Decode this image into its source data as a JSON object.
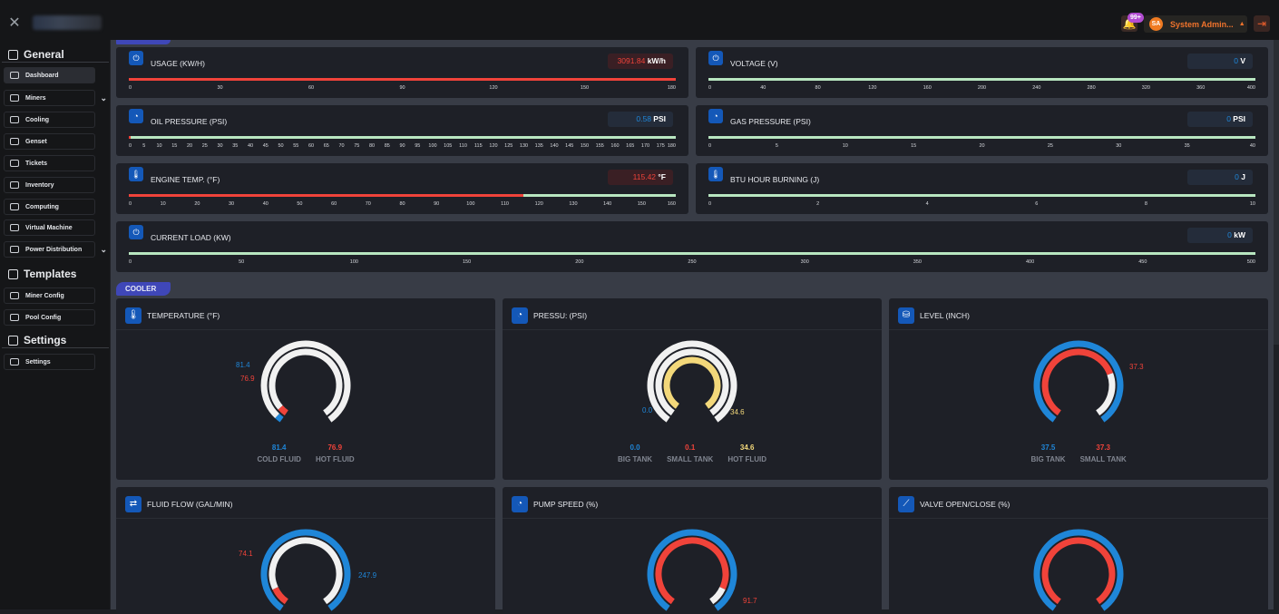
{
  "topbar": {
    "notification_count": "99+",
    "user_initials": "SA",
    "user_name": "System Admin..."
  },
  "sidebar": {
    "sections": [
      {
        "title": "General",
        "items": [
          "Dashboard",
          "Miners",
          "Cooling",
          "Genset",
          "Tickets",
          "Inventory",
          "Computing",
          "Virtual Machine",
          "Power Distribution"
        ]
      },
      {
        "title": "Templates",
        "items": [
          "Miner Config",
          "Pool Config"
        ]
      },
      {
        "title": "Settings",
        "items": [
          "Settings"
        ]
      }
    ]
  },
  "meters": [
    {
      "title": "USAGE (KW/H)",
      "value": "3091.84",
      "unit": "kW/h",
      "status": "red",
      "fill": 1.0,
      "ticks": [
        "0",
        "30",
        "60",
        "90",
        "120",
        "150",
        "180"
      ]
    },
    {
      "title": "VOLTAGE (V)",
      "value": "0",
      "unit": "V",
      "status": "blue",
      "fill": 0,
      "ticks": [
        "0",
        "40",
        "80",
        "120",
        "160",
        "200",
        "240",
        "280",
        "320",
        "360",
        "400"
      ]
    },
    {
      "title": "OIL PRESSURE (PSI)",
      "value": "0.58",
      "unit": "PSI",
      "status": "blue",
      "fill": 0.003,
      "ticks": [
        "0",
        "5",
        "10",
        "15",
        "20",
        "25",
        "30",
        "35",
        "40",
        "45",
        "50",
        "55",
        "60",
        "65",
        "70",
        "75",
        "80",
        "85",
        "90",
        "95",
        "100",
        "105",
        "110",
        "115",
        "120",
        "125",
        "130",
        "135",
        "140",
        "145",
        "150",
        "155",
        "160",
        "165",
        "170",
        "175",
        "180"
      ]
    },
    {
      "title": "GAS PRESSURE (PSI)",
      "value": "0",
      "unit": "PSI",
      "status": "blue",
      "fill": 0,
      "ticks": [
        "0",
        "5",
        "10",
        "15",
        "20",
        "25",
        "30",
        "35",
        "40"
      ]
    },
    {
      "title": "ENGINE TEMP. (°F)",
      "value": "115.42",
      "unit": "°F",
      "status": "red",
      "fill": 0.7214,
      "ticks": [
        "0",
        "10",
        "20",
        "30",
        "40",
        "50",
        "60",
        "70",
        "80",
        "90",
        "100",
        "110",
        "120",
        "130",
        "140",
        "150",
        "160"
      ]
    },
    {
      "title": "BTU HOUR BURNING (J)",
      "value": "0",
      "unit": "J",
      "status": "blue",
      "fill": 0,
      "ticks": [
        "0",
        "2",
        "4",
        "6",
        "8",
        "10"
      ]
    },
    {
      "title": "CURRENT LOAD (KW)",
      "value": "0",
      "unit": "kW",
      "status": "blue",
      "fill": 0,
      "ticks": [
        "0",
        "50",
        "100",
        "150",
        "200",
        "250",
        "300",
        "350",
        "400",
        "450",
        "500"
      ]
    }
  ],
  "cooler_tab": "COOLER",
  "gauges": [
    {
      "title": "TEMPERATURE (°F)",
      "icon": "thermometer-icon",
      "legend": [
        {
          "value": "81.4",
          "label": "COLD FLUID",
          "color": "#1f86d8"
        },
        {
          "value": "76.9",
          "label": "HOT FLUID",
          "color": "#f0433a"
        }
      ],
      "callouts": [
        {
          "text": "81.4",
          "color": "#1f86d8"
        },
        {
          "text": "76.9",
          "color": "#f0433a"
        }
      ]
    },
    {
      "title": "PRESSU: (PSI)",
      "icon": "gauge-icon",
      "legend": [
        {
          "value": "0.0",
          "label": "BIG TANK",
          "color": "#1f86d8"
        },
        {
          "value": "0.1",
          "label": "SMALL TANK",
          "color": "#f0433a"
        },
        {
          "value": "34.6",
          "label": "HOT FLUID",
          "color": "#f3d87a"
        }
      ],
      "callouts": [
        {
          "text": "0.0",
          "color": "#1f86d8"
        },
        {
          "text": "34.6",
          "color": "#f3d87a"
        }
      ]
    },
    {
      "title": "LEVEL (INCH)",
      "icon": "tank-icon",
      "legend": [
        {
          "value": "37.5",
          "label": "BIG TANK",
          "color": "#1f86d8"
        },
        {
          "value": "37.3",
          "label": "SMALL TANK",
          "color": "#f0433a"
        }
      ],
      "callouts": [
        {
          "text": "37.3",
          "color": "#f0433a"
        }
      ]
    },
    {
      "title": "FLUID FLOW (GAL/MIN)",
      "icon": "flow-icon",
      "legend": [],
      "callouts": [
        {
          "text": "74.1",
          "color": "#f0433a"
        },
        {
          "text": "247.9",
          "color": "#1f86d8"
        }
      ]
    },
    {
      "title": "PUMP SPEED (%)",
      "icon": "speedometer-icon",
      "legend": [],
      "callouts": [
        {
          "text": "91.7",
          "color": "#f0433a"
        }
      ]
    },
    {
      "title": "VALVE OPEN/CLOSE (%)",
      "icon": "valve-icon",
      "legend": [],
      "callouts": []
    }
  ]
}
